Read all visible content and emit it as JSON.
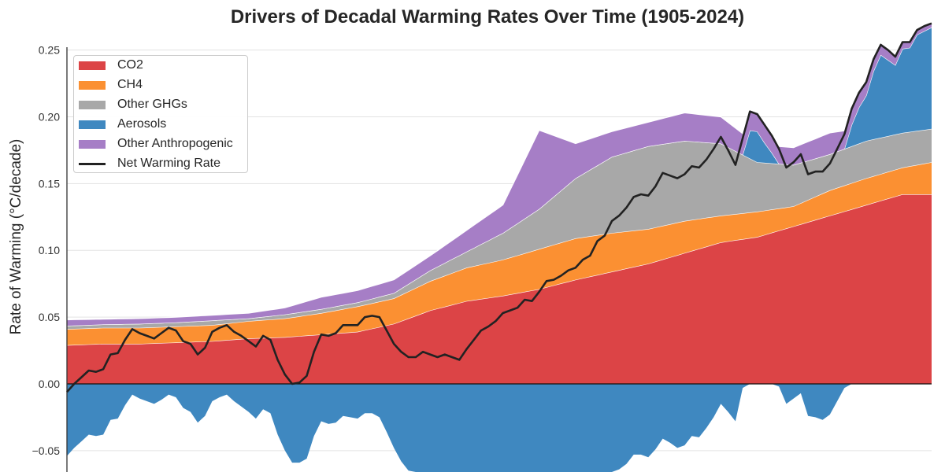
{
  "chart_data": {
    "type": "area",
    "stacked": true,
    "title": "Drivers of Decadal Warming Rates Over Time (1905-2024)",
    "xlabel": "",
    "ylabel": "Rate of Warming (°C/decade)",
    "xlim": [
      1905,
      2024
    ],
    "ylim": [
      -0.066,
      0.2875
    ],
    "grid": "horizontal",
    "legend_placement": "top-left",
    "yticks": [
      -0.05,
      0.0,
      0.05,
      0.1,
      0.15,
      0.2,
      0.25
    ],
    "ytick_labels": [
      "−0.05",
      "0.00",
      "0.05",
      "0.10",
      "0.15",
      "0.20",
      "0.25"
    ],
    "annual_years": [
      1905,
      2024
    ],
    "component_years": [
      1905,
      1910,
      1915,
      1920,
      1925,
      1930,
      1935,
      1940,
      1945,
      1950,
      1955,
      1960,
      1965,
      1970,
      1975,
      1980,
      1985,
      1990,
      1995,
      2000,
      2005,
      2010,
      2015,
      2020,
      2024
    ],
    "series": [
      {
        "name": "CO2",
        "color": "#dc4446",
        "values": [
          0.029,
          0.03,
          0.03,
          0.031,
          0.032,
          0.034,
          0.035,
          0.037,
          0.039,
          0.045,
          0.055,
          0.062,
          0.066,
          0.071,
          0.078,
          0.084,
          0.09,
          0.098,
          0.106,
          0.11,
          0.118,
          0.126,
          0.134,
          0.142,
          0.142
        ]
      },
      {
        "name": "CH4",
        "color": "#fb9032",
        "values": [
          0.012,
          0.012,
          0.012,
          0.012,
          0.012,
          0.013,
          0.014,
          0.016,
          0.019,
          0.019,
          0.022,
          0.025,
          0.027,
          0.03,
          0.031,
          0.029,
          0.026,
          0.024,
          0.02,
          0.019,
          0.015,
          0.019,
          0.02,
          0.02,
          0.024
        ]
      },
      {
        "name": "Other GHGs",
        "color": "#a8a8a8",
        "values": [
          0.0025,
          0.0025,
          0.003,
          0.003,
          0.0035,
          0.002,
          0.003,
          0.003,
          0.003,
          0.004,
          0.008,
          0.012,
          0.02,
          0.03,
          0.045,
          0.057,
          0.062,
          0.06,
          0.054,
          0.037,
          0.031,
          0.027,
          0.028,
          0.026,
          0.025
        ]
      },
      {
        "name": "Aerosols",
        "color": "#3f88c0",
        "annual": true,
        "values": [
          -0.054,
          -0.048,
          -0.043,
          -0.038,
          -0.039,
          -0.038,
          -0.027,
          -0.026,
          -0.016,
          -0.008,
          -0.011,
          -0.013,
          -0.015,
          -0.012,
          -0.008,
          -0.01,
          -0.018,
          -0.021,
          -0.029,
          -0.024,
          -0.013,
          -0.01,
          -0.008,
          -0.013,
          -0.017,
          -0.021,
          -0.026,
          -0.019,
          -0.022,
          -0.038,
          -0.05,
          -0.059,
          -0.059,
          -0.056,
          -0.039,
          -0.028,
          -0.03,
          -0.029,
          -0.024,
          -0.025,
          -0.026,
          -0.022,
          -0.022,
          -0.025,
          -0.036,
          -0.048,
          -0.058,
          -0.065,
          -0.069,
          -0.068,
          -0.074,
          -0.08,
          -0.082,
          -0.087,
          -0.093,
          -0.089,
          -0.086,
          -0.083,
          -0.083,
          -0.083,
          -0.081,
          -0.084,
          -0.087,
          -0.087,
          -0.093,
          -0.091,
          -0.087,
          -0.09,
          -0.091,
          -0.091,
          -0.093,
          -0.089,
          -0.088,
          -0.078,
          -0.076,
          -0.067,
          -0.064,
          -0.06,
          -0.053,
          -0.053,
          -0.055,
          -0.049,
          -0.041,
          -0.044,
          -0.048,
          -0.046,
          -0.039,
          -0.04,
          -0.033,
          -0.025,
          -0.015,
          -0.021,
          -0.028,
          -0.003,
          0.021,
          0.023,
          0.015,
          0.008,
          -0.002,
          -0.015,
          -0.011,
          -0.007,
          -0.024,
          -0.025,
          -0.027,
          -0.023,
          -0.013,
          -0.003,
          0.016,
          0.027,
          0.034,
          0.051,
          0.062,
          0.057,
          0.052,
          0.063,
          0.063,
          0.072,
          0.074,
          0.076
        ]
      },
      {
        "name": "Other Anthropogenic",
        "color": "#a67ec6",
        "values": [
          0.0045,
          0.004,
          0.004,
          0.004,
          0.004,
          0.004,
          0.005,
          0.009,
          0.009,
          0.01,
          0.011,
          0.016,
          0.021,
          0.059,
          0.026,
          0.019,
          0.018,
          0.021,
          0.02,
          0.013,
          0.013,
          0.016,
          0.01,
          0.005,
          0.003
        ]
      }
    ],
    "net": {
      "name": "Net Warming Rate",
      "color": "#222222",
      "annual": true,
      "values": [
        -0.006,
        0.0,
        0.005,
        0.01,
        0.009,
        0.011,
        0.022,
        0.023,
        0.033,
        0.041,
        0.038,
        0.036,
        0.034,
        0.038,
        0.042,
        0.04,
        0.032,
        0.03,
        0.022,
        0.027,
        0.039,
        0.042,
        0.044,
        0.039,
        0.036,
        0.032,
        0.028,
        0.036,
        0.033,
        0.018,
        0.007,
        0.0,
        0.001,
        0.006,
        0.024,
        0.037,
        0.036,
        0.038,
        0.044,
        0.044,
        0.044,
        0.05,
        0.051,
        0.05,
        0.04,
        0.03,
        0.024,
        0.02,
        0.02,
        0.024,
        0.022,
        0.02,
        0.022,
        0.02,
        0.018,
        0.026,
        0.033,
        0.04,
        0.043,
        0.047,
        0.053,
        0.055,
        0.057,
        0.063,
        0.062,
        0.069,
        0.077,
        0.078,
        0.081,
        0.085,
        0.087,
        0.093,
        0.096,
        0.107,
        0.111,
        0.122,
        0.126,
        0.132,
        0.14,
        0.142,
        0.141,
        0.148,
        0.158,
        0.156,
        0.154,
        0.157,
        0.163,
        0.162,
        0.168,
        0.176,
        0.185,
        0.175,
        0.164,
        0.184,
        0.204,
        0.202,
        0.194,
        0.186,
        0.176,
        0.162,
        0.166,
        0.172,
        0.157,
        0.159,
        0.159,
        0.165,
        0.176,
        0.187,
        0.206,
        0.218,
        0.226,
        0.243,
        0.254,
        0.25,
        0.245,
        0.256,
        0.256,
        0.265,
        0.268,
        0.27
      ]
    }
  }
}
